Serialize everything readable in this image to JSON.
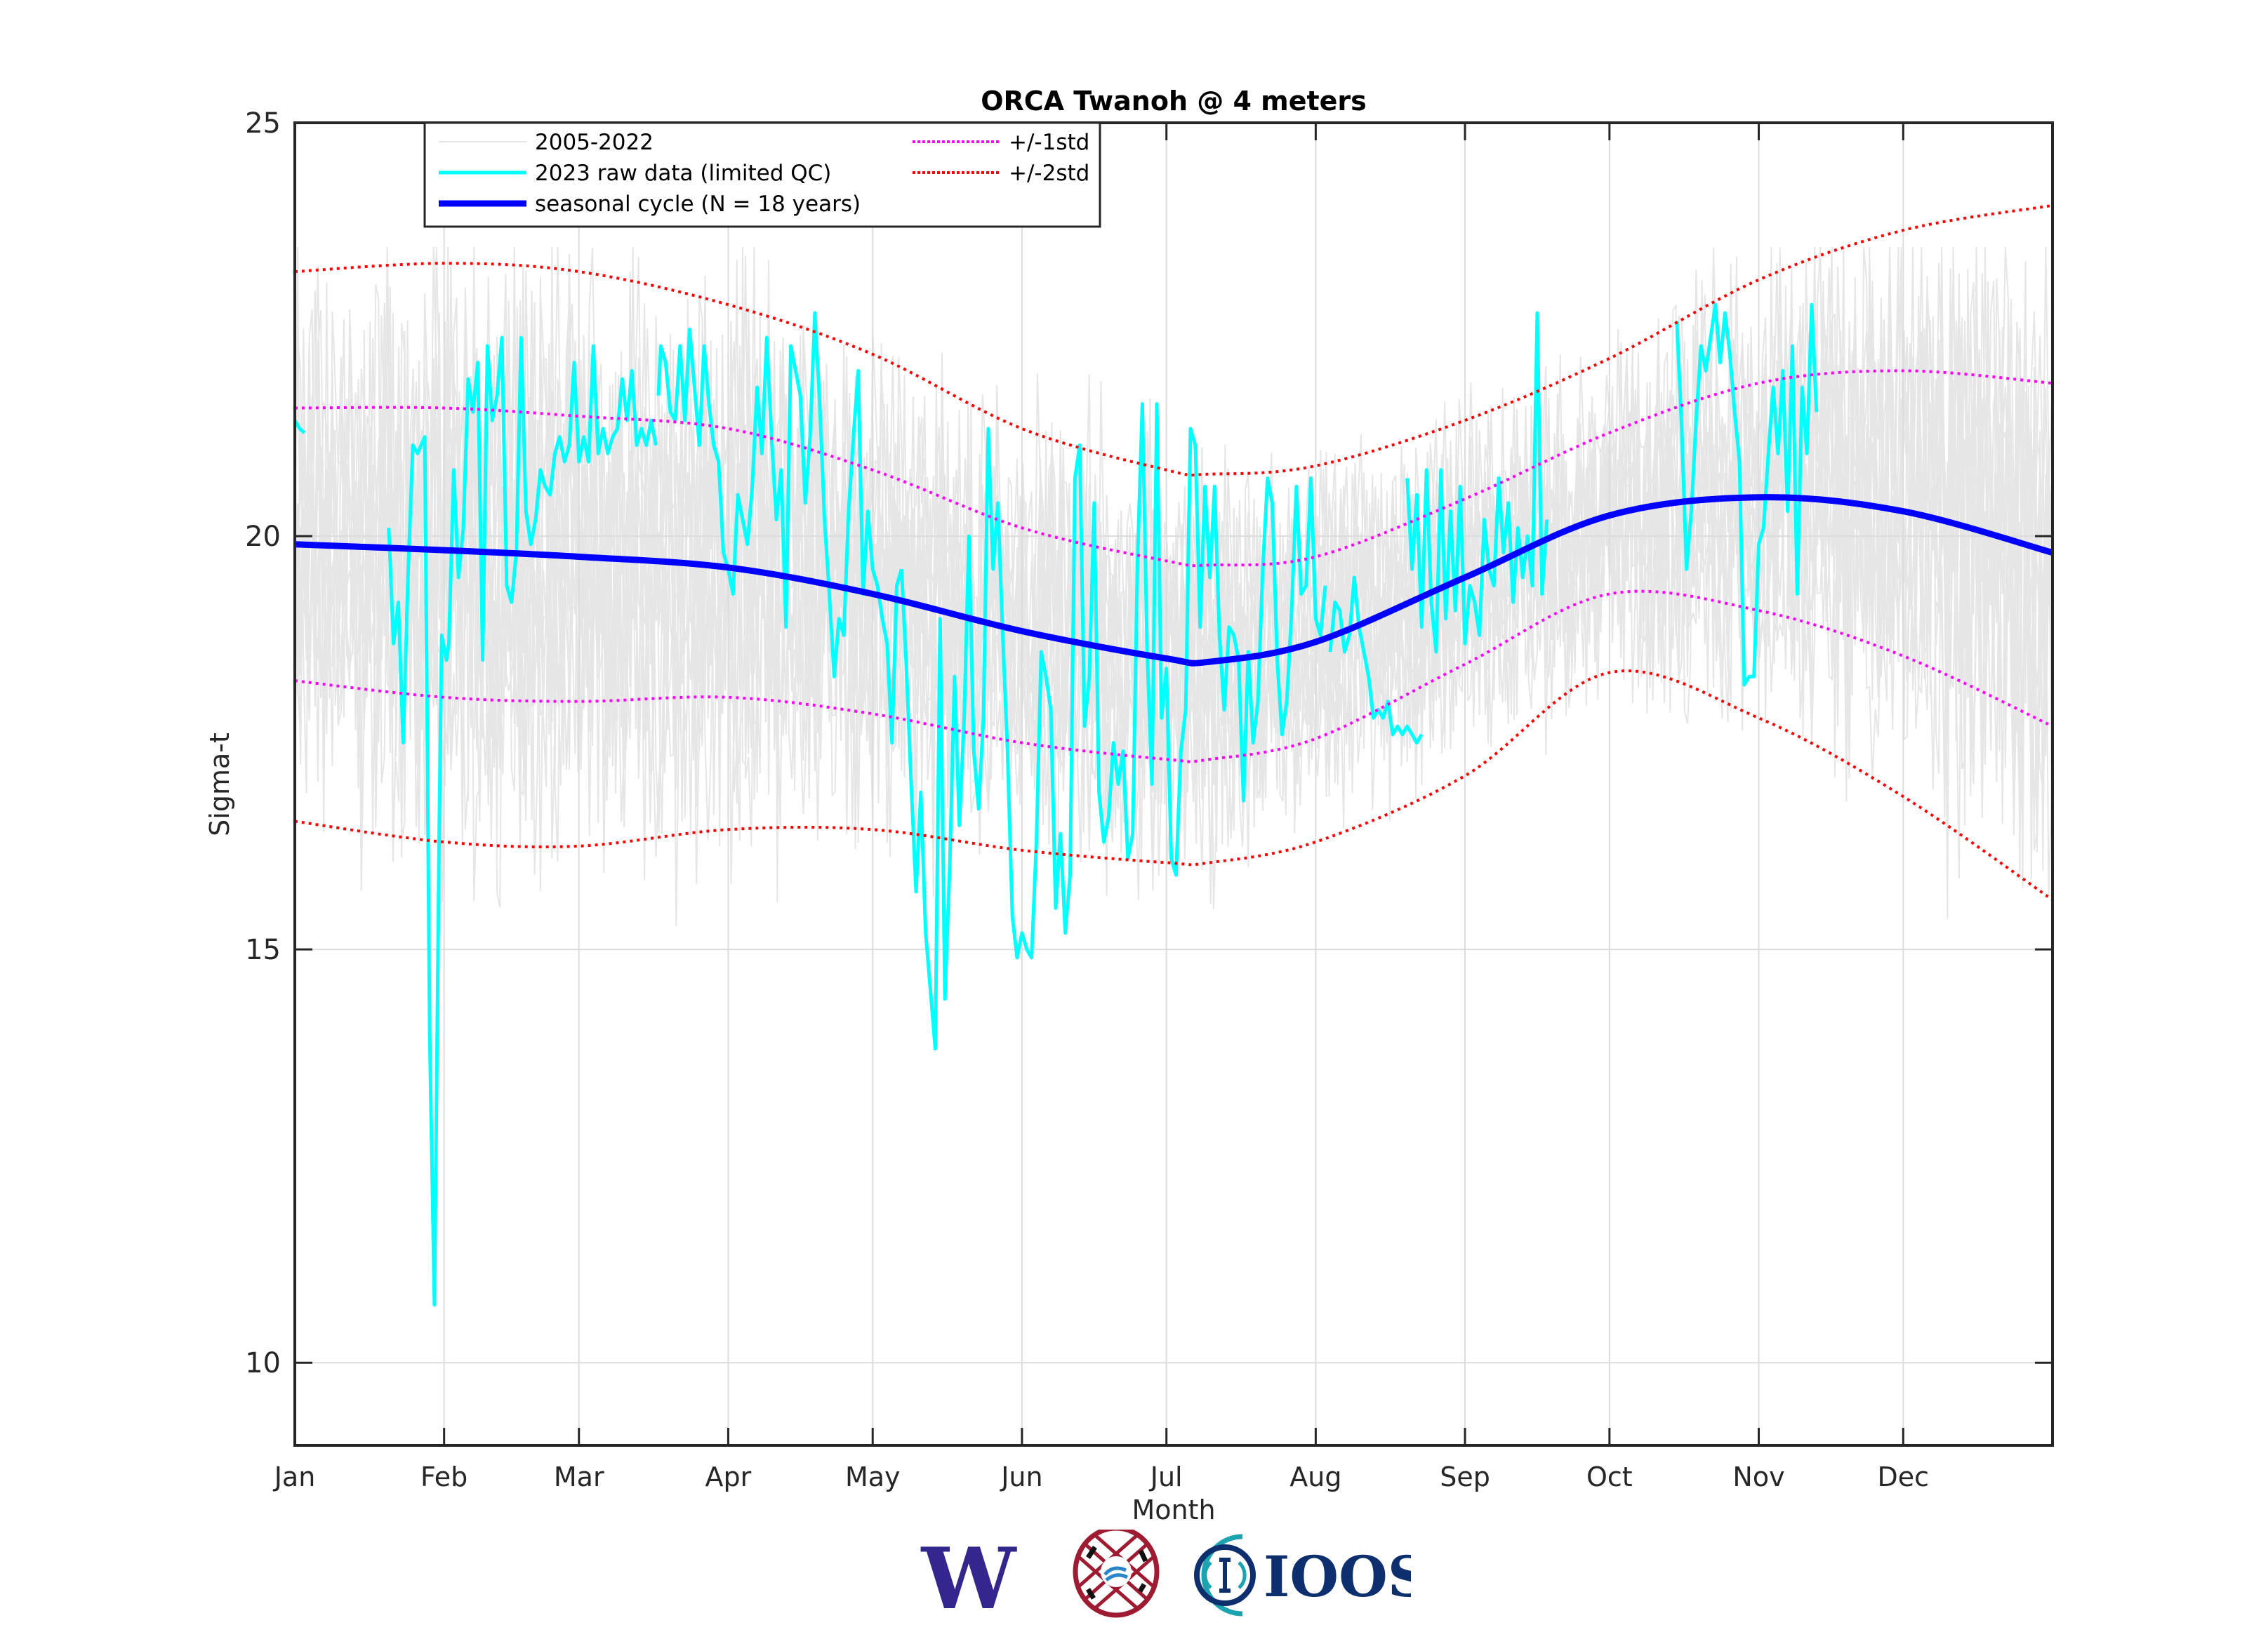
{
  "chart_data": {
    "type": "line",
    "title": "ORCA Twanoh @ 4 meters",
    "xlabel": "Month",
    "ylabel": "Sigma-t",
    "xlim": [
      0,
      365
    ],
    "ylim": [
      9,
      25
    ],
    "grid": true,
    "legend_position": "top-left",
    "x_ticks": [
      {
        "label": "Jan",
        "day": 0
      },
      {
        "label": "Feb",
        "day": 31
      },
      {
        "label": "Mar",
        "day": 59
      },
      {
        "label": "Apr",
        "day": 90
      },
      {
        "label": "May",
        "day": 120
      },
      {
        "label": "Jun",
        "day": 151
      },
      {
        "label": "Jul",
        "day": 181
      },
      {
        "label": "Aug",
        "day": 212
      },
      {
        "label": "Sep",
        "day": 243
      },
      {
        "label": "Oct",
        "day": 273
      },
      {
        "label": "Nov",
        "day": 304
      },
      {
        "label": "Dec",
        "day": 334
      }
    ],
    "y_ticks": [
      10,
      15,
      20,
      25
    ],
    "legend": [
      {
        "label": "2005-2022",
        "color": "#e6e6e6",
        "style": "solid"
      },
      {
        "label": "2023 raw data (limited QC)",
        "color": "#00ffff",
        "style": "solid"
      },
      {
        "label": "seasonal cycle (N = 18 years)",
        "color": "#0000ff",
        "style": "solid"
      },
      {
        "label": "+/-1std",
        "color": "#ff00ff",
        "style": "dotted"
      },
      {
        "label": "+/-2std",
        "color": "#ff0000",
        "style": "dotted"
      }
    ],
    "series": [
      {
        "name": "seasonal cycle (N = 18 years)",
        "color": "#0000ff",
        "x": [
          0,
          31,
          59,
          90,
          120,
          151,
          181,
          190,
          212,
          243,
          273,
          304,
          334,
          365
        ],
        "y": [
          19.9,
          19.83,
          19.75,
          19.62,
          19.3,
          18.85,
          18.52,
          18.48,
          18.72,
          19.5,
          20.25,
          20.47,
          20.3,
          19.8
        ]
      },
      {
        "name": "+1std",
        "color": "#ff00ff",
        "x": [
          0,
          31,
          59,
          90,
          120,
          151,
          181,
          190,
          212,
          243,
          273,
          304,
          334,
          365
        ],
        "y": [
          21.55,
          21.55,
          21.45,
          21.3,
          20.8,
          20.1,
          19.7,
          19.65,
          19.75,
          20.45,
          21.25,
          21.85,
          22.0,
          21.85
        ]
      },
      {
        "name": "-1std",
        "color": "#ff00ff",
        "x": [
          0,
          31,
          59,
          90,
          120,
          151,
          181,
          190,
          212,
          243,
          273,
          304,
          334,
          365
        ],
        "y": [
          18.25,
          18.05,
          18.0,
          18.05,
          17.85,
          17.5,
          17.3,
          17.3,
          17.55,
          18.45,
          19.3,
          19.1,
          18.55,
          17.7
        ]
      },
      {
        "name": "+2std",
        "color": "#ff0000",
        "x": [
          0,
          31,
          59,
          90,
          120,
          151,
          181,
          190,
          212,
          243,
          273,
          304,
          334,
          365
        ],
        "y": [
          23.2,
          23.3,
          23.2,
          22.8,
          22.2,
          21.3,
          20.8,
          20.75,
          20.85,
          21.4,
          22.15,
          23.1,
          23.7,
          24.0
        ]
      },
      {
        "name": "-2std",
        "color": "#ff0000",
        "x": [
          0,
          31,
          59,
          90,
          120,
          151,
          181,
          190,
          212,
          243,
          273,
          304,
          334,
          365
        ],
        "y": [
          16.55,
          16.3,
          16.25,
          16.45,
          16.45,
          16.2,
          16.05,
          16.05,
          16.3,
          17.1,
          18.35,
          17.8,
          16.85,
          15.6
        ]
      },
      {
        "name": "2023 raw data (limited QC)",
        "color": "#00ffff",
        "segments": [
          {
            "x": [
              0,
              1,
              2
            ],
            "y": [
              21.4,
              21.3,
              21.25
            ]
          },
          {
            "x": [
              19.5,
              20.5,
              21.5,
              22.5,
              23.5,
              24.5,
              25.5,
              27,
              28,
              29,
              30,
              30.5,
              31.5,
              32,
              33,
              34,
              35,
              36,
              37,
              38,
              39,
              40,
              41,
              42,
              43,
              44,
              45,
              46,
              47,
              48,
              49,
              50,
              51,
              52,
              53,
              54,
              55,
              56,
              57,
              58,
              59,
              60,
              61,
              62,
              63,
              64,
              65,
              66,
              67,
              68,
              69,
              70,
              71,
              72,
              73,
              74,
              75
            ],
            "y": [
              20.1,
              18.7,
              19.2,
              17.5,
              19.5,
              21.1,
              21.0,
              21.2,
              14.0,
              10.7,
              16.5,
              18.8,
              18.5,
              18.7,
              20.8,
              19.5,
              20.1,
              21.9,
              21.5,
              22.1,
              18.5,
              22.3,
              21.4,
              21.7,
              22.4,
              19.4,
              19.2,
              19.8,
              22.4,
              20.3,
              19.9,
              20.2,
              20.8,
              20.6,
              20.5,
              21.0,
              21.2,
              20.9,
              21.1,
              22.1,
              20.9,
              21.2,
              20.9,
              22.3,
              21.0,
              21.3,
              21.0,
              21.2,
              21.3,
              21.9,
              21.4,
              22.0,
              21.1,
              21.3,
              21.1,
              21.4,
              21.1
            ]
          },
          {
            "x": [
              75.5,
              76,
              77,
              78,
              79,
              80,
              81,
              82,
              83,
              84,
              85,
              86,
              87,
              88,
              89,
              90,
              91,
              92,
              93,
              94,
              95,
              96,
              97,
              98,
              99,
              100,
              101,
              102,
              103,
              104,
              105,
              106,
              107,
              108,
              109,
              110,
              111,
              112,
              113,
              114,
              115,
              116,
              117,
              118,
              119,
              120,
              121,
              122,
              123,
              124,
              125,
              126
            ],
            "y": [
              21.7,
              22.3,
              22.1,
              21.5,
              21.4,
              22.3,
              21.4,
              22.5,
              21.8,
              21.1,
              22.3,
              21.6,
              21.1,
              20.9,
              19.8,
              19.6,
              19.3,
              20.5,
              20.2,
              19.9,
              20.6,
              21.8,
              21.0,
              22.4,
              21.2,
              20.2,
              20.8,
              18.9,
              22.3,
              22.0,
              21.7,
              20.4,
              21.2,
              22.7,
              21.6,
              20.2,
              19.3,
              18.3,
              19.0,
              18.8,
              20.3,
              21.2,
              22.0,
              19.3,
              20.3,
              19.6,
              19.4,
              19.0,
              18.7,
              17.5,
              19.4,
              19.6
            ]
          },
          {
            "x": [
              126,
              127,
              128,
              129,
              130,
              131,
              132,
              133,
              134,
              135,
              136,
              137,
              138,
              139,
              140,
              141,
              142,
              143,
              144,
              145,
              146,
              147,
              148,
              149,
              150,
              151,
              152,
              153,
              154,
              155,
              156,
              157,
              158,
              159,
              160,
              161,
              162,
              163,
              164,
              165,
              166,
              167,
              168,
              169,
              170,
              171,
              172,
              173,
              174,
              175,
              176,
              177,
              178,
              179,
              180,
              181,
              182,
              183,
              184,
              185,
              186,
              187,
              188,
              189,
              190,
              191,
              192,
              193,
              194,
              195,
              196,
              197,
              198,
              199,
              200,
              201,
              202,
              203,
              204,
              205,
              206,
              207,
              208,
              209,
              210,
              211,
              212,
              213,
              214
            ],
            "y": [
              19.6,
              18.4,
              17.0,
              15.7,
              16.9,
              15.2,
              14.5,
              13.8,
              19.0,
              14.4,
              16.0,
              18.3,
              16.5,
              17.8,
              20.0,
              17.4,
              16.7,
              17.8,
              21.3,
              19.6,
              20.4,
              18.8,
              17.4,
              15.4,
              14.9,
              15.2,
              15.0,
              14.9,
              16.3,
              18.6,
              18.3,
              17.9,
              15.5,
              16.4,
              15.2,
              15.9,
              20.7,
              21.1,
              17.7,
              18.3,
              20.4,
              16.9,
              16.3,
              16.6,
              17.5,
              17.0,
              17.4,
              16.1,
              16.4,
              19.7,
              21.6,
              18.6,
              17.0,
              21.6,
              17.8,
              18.4,
              16.1,
              15.9,
              17.4,
              17.9,
              21.3,
              21.1,
              18.9,
              20.6,
              19.5,
              20.6,
              18.8,
              17.9,
              18.9,
              18.8,
              18.5,
              16.8,
              18.6,
              17.5,
              18.0,
              19.6,
              20.7,
              20.4,
              18.5,
              17.6,
              18.0,
              19.1,
              20.6,
              19.3,
              19.4,
              20.7,
              19.0,
              18.8,
              19.4
            ]
          },
          {
            "x": [
              215,
              216,
              217,
              218,
              219,
              220,
              221,
              222,
              223,
              224,
              225,
              226,
              227,
              228,
              229,
              230,
              231,
              232,
              233,
              234
            ],
            "y": [
              18.6,
              19.2,
              19.1,
              18.6,
              18.8,
              19.5,
              18.9,
              18.6,
              18.3,
              17.8,
              17.9,
              17.8,
              18.0,
              17.6,
              17.7,
              17.6,
              17.7,
              17.6,
              17.5,
              17.6
            ]
          },
          {
            "x": [
              231,
              232,
              233,
              234,
              235,
              236,
              237,
              238,
              239,
              240,
              241,
              242,
              243,
              244,
              245,
              246,
              247,
              248,
              249,
              250,
              251,
              252,
              253,
              254,
              255,
              256,
              257,
              258,
              259,
              260
            ],
            "y": [
              20.7,
              19.6,
              20.5,
              18.9,
              20.8,
              19.2,
              18.6,
              20.8,
              19.0,
              20.3,
              19.1,
              20.6,
              18.7,
              19.4,
              19.2,
              18.8,
              20.2,
              19.6,
              19.4,
              20.7,
              19.8,
              20.4,
              19.2,
              20.1,
              19.5,
              20.0,
              19.4,
              22.7,
              19.3,
              20.2
            ]
          },
          {
            "x": [
              287,
              288,
              289,
              290,
              291,
              292,
              293,
              294,
              295,
              296,
              297,
              298,
              299,
              300,
              301,
              302,
              303,
              304,
              305,
              306,
              307,
              308,
              309,
              310,
              311,
              312,
              313,
              314,
              315,
              316
            ],
            "y": [
              22.6,
              21.3,
              19.6,
              20.3,
              21.4,
              22.3,
              22.0,
              22.4,
              22.8,
              22.1,
              22.7,
              22.2,
              21.5,
              20.9,
              18.2,
              18.3,
              18.3,
              19.9,
              20.1,
              21.0,
              21.8,
              21.0,
              22.0,
              20.3,
              22.3,
              19.3,
              21.8,
              21.0,
              22.8,
              21.5
            ]
          }
        ]
      }
    ]
  },
  "logos": {
    "uw": "W",
    "ioos": "IOOS"
  }
}
